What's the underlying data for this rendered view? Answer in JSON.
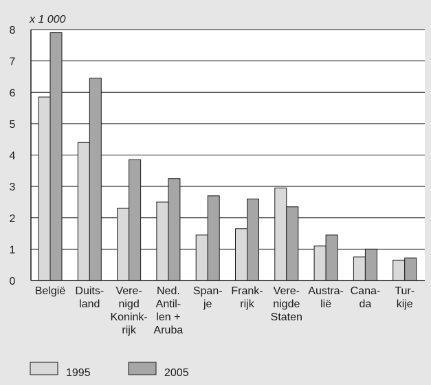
{
  "chart_data": {
    "type": "bar",
    "title": "",
    "unit_label": "x 1 000",
    "xlabel": "",
    "ylabel": "",
    "ylim": [
      0,
      8
    ],
    "yticks": [
      0,
      1,
      2,
      3,
      4,
      5,
      6,
      7,
      8
    ],
    "grid": true,
    "legend_position": "bottom-left",
    "categories": [
      "België",
      "Duitsland",
      "Verenigd Koninkrijk",
      "Ned. Antillen + Aruba",
      "Spanje",
      "Frankrijk",
      "Verenigde Staten",
      "Australië",
      "Canada",
      "Turkije"
    ],
    "category_label_lines": [
      [
        "België"
      ],
      [
        "Duits-",
        "land"
      ],
      [
        "Vere-",
        "nigd",
        "Konink-",
        "rijk"
      ],
      [
        "Ned.",
        "Antil-",
        "len +",
        "Aruba"
      ],
      [
        "Span-",
        "je"
      ],
      [
        "Frank-",
        "rijk"
      ],
      [
        "Vere-",
        "nigde",
        "Staten"
      ],
      [
        "Austra-",
        "lië"
      ],
      [
        "Cana-",
        "da"
      ],
      [
        "Tur-",
        "kije"
      ]
    ],
    "series": [
      {
        "name": "1995",
        "color": "#d9d9d9",
        "values": [
          5.85,
          4.4,
          2.3,
          2.5,
          1.45,
          1.65,
          2.95,
          1.1,
          0.75,
          0.65
        ]
      },
      {
        "name": "2005",
        "color": "#a6a6a6",
        "values": [
          7.9,
          6.45,
          3.85,
          3.25,
          2.7,
          2.6,
          2.35,
          1.45,
          1.0,
          0.72
        ]
      }
    ]
  }
}
